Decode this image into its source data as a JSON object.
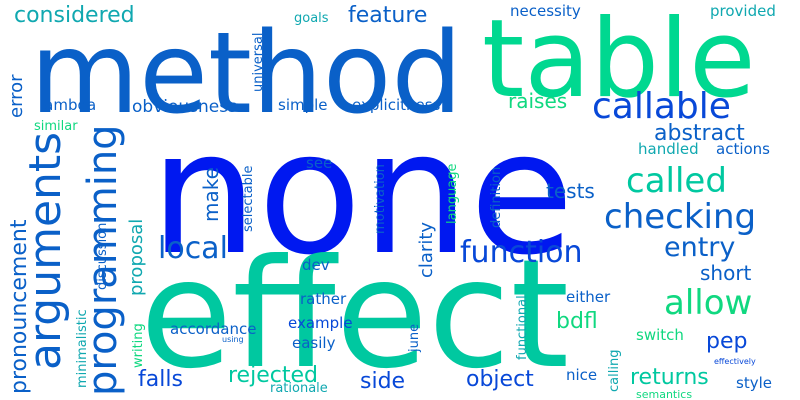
{
  "colors": {
    "background": "#ffffff",
    "palette": [
      "#0018f0",
      "#0a60c8",
      "#10a8b0",
      "#00c8a0",
      "#00d890",
      "#10d880",
      "#0848d8"
    ]
  },
  "words": [
    {
      "text": "none",
      "weight": 100,
      "color": "#0018f0"
    },
    {
      "text": "effect",
      "weight": 90,
      "color": "#00c8a0"
    },
    {
      "text": "method",
      "weight": 70,
      "color": "#0a60c8"
    },
    {
      "text": "table",
      "weight": 68,
      "color": "#00d890"
    },
    {
      "text": "arguments",
      "weight": 40,
      "color": "#0a60c8"
    },
    {
      "text": "programming",
      "weight": 36,
      "color": "#0a60c8"
    },
    {
      "text": "callable",
      "weight": 32,
      "color": "#0848d8"
    },
    {
      "text": "called",
      "weight": 30,
      "color": "#00c8a0"
    },
    {
      "text": "checking",
      "weight": 30,
      "color": "#0a60c8"
    },
    {
      "text": "allow",
      "weight": 30,
      "color": "#10d880"
    },
    {
      "text": "function",
      "weight": 26,
      "color": "#0848d8"
    },
    {
      "text": "local",
      "weight": 26,
      "color": "#0a60c8"
    },
    {
      "text": "entry",
      "weight": 24,
      "color": "#0a60c8"
    },
    {
      "text": "pronouncement",
      "weight": 22,
      "color": "#0a60c8"
    },
    {
      "text": "considered",
      "weight": 20,
      "color": "#10a8b0"
    },
    {
      "text": "feature",
      "weight": 20,
      "color": "#0a60c8"
    },
    {
      "text": "abstract",
      "weight": 20,
      "color": "#0a60c8"
    },
    {
      "text": "rejected",
      "weight": 20,
      "color": "#00c8a0"
    },
    {
      "text": "falls",
      "weight": 20,
      "color": "#0848d8"
    },
    {
      "text": "side",
      "weight": 20,
      "color": "#0848d8"
    },
    {
      "text": "object",
      "weight": 20,
      "color": "#0848d8"
    },
    {
      "text": "returns",
      "weight": 20,
      "color": "#00c8a0"
    },
    {
      "text": "pep",
      "weight": 20,
      "color": "#0848d8"
    },
    {
      "text": "bdfl",
      "weight": 20,
      "color": "#10d880"
    },
    {
      "text": "short",
      "weight": 18,
      "color": "#0a60c8"
    },
    {
      "text": "raises",
      "weight": 18,
      "color": "#10d880"
    },
    {
      "text": "make",
      "weight": 18,
      "color": "#0a60c8"
    },
    {
      "text": "tests",
      "weight": 18,
      "color": "#0a60c8"
    },
    {
      "text": "proposal",
      "weight": 16,
      "color": "#10a8b0"
    },
    {
      "text": "clarity",
      "weight": 16,
      "color": "#0a60c8"
    },
    {
      "text": "error",
      "weight": 16,
      "color": "#0a60c8"
    },
    {
      "text": "obviousness",
      "weight": 16,
      "color": "#0a60c8"
    },
    {
      "text": "explicitness",
      "weight": 14,
      "color": "#0a60c8"
    },
    {
      "text": "simple",
      "weight": 14,
      "color": "#0a60c8"
    },
    {
      "text": "lambda",
      "weight": 14,
      "color": "#0a60c8"
    },
    {
      "text": "example",
      "weight": 14,
      "color": "#0848d8"
    },
    {
      "text": "easily",
      "weight": 14,
      "color": "#0a60c8"
    },
    {
      "text": "accordance",
      "weight": 14,
      "color": "#0a60c8"
    },
    {
      "text": "nice",
      "weight": 14,
      "color": "#0a60c8"
    },
    {
      "text": "style",
      "weight": 14,
      "color": "#0a60c8"
    },
    {
      "text": "switch",
      "weight": 14,
      "color": "#10d880"
    },
    {
      "text": "either",
      "weight": 14,
      "color": "#0a60c8"
    },
    {
      "text": "rather",
      "weight": 14,
      "color": "#0a60c8"
    },
    {
      "text": "handled",
      "weight": 14,
      "color": "#10a8b0"
    },
    {
      "text": "actions",
      "weight": 14,
      "color": "#0a60c8"
    },
    {
      "text": "necessity",
      "weight": 14,
      "color": "#0a60c8"
    },
    {
      "text": "provided",
      "weight": 14,
      "color": "#10a8b0"
    },
    {
      "text": "goals",
      "weight": 12,
      "color": "#10a8b0"
    },
    {
      "text": "see",
      "weight": 14,
      "color": "#0a60c8"
    },
    {
      "text": "dev",
      "weight": 14,
      "color": "#0a60c8"
    },
    {
      "text": "universal",
      "weight": 12,
      "color": "#0a60c8"
    },
    {
      "text": "selectable",
      "weight": 12,
      "color": "#0a60c8"
    },
    {
      "text": "motivation",
      "weight": 12,
      "color": "#0a60c8"
    },
    {
      "text": "language",
      "weight": 12,
      "color": "#10d880"
    },
    {
      "text": "definition",
      "weight": 12,
      "color": "#0a60c8"
    },
    {
      "text": "functional",
      "weight": 12,
      "color": "#10a8b0"
    },
    {
      "text": "june",
      "weight": 12,
      "color": "#0a60c8"
    },
    {
      "text": "calling",
      "weight": 12,
      "color": "#10a8b0"
    },
    {
      "text": "discussion",
      "weight": 12,
      "color": "#0a60c8"
    },
    {
      "text": "minimalistic",
      "weight": 12,
      "color": "#10a8b0"
    },
    {
      "text": "writing",
      "weight": 12,
      "color": "#10d880"
    },
    {
      "text": "similar",
      "weight": 12,
      "color": "#10d880"
    },
    {
      "text": "rationale",
      "weight": 12,
      "color": "#10a8b0"
    },
    {
      "text": "semantics",
      "weight": 10,
      "color": "#10d880"
    },
    {
      "text": "effectively",
      "weight": 8,
      "color": "#0848d8"
    },
    {
      "text": "using",
      "weight": 8,
      "color": "#0a60c8"
    }
  ]
}
